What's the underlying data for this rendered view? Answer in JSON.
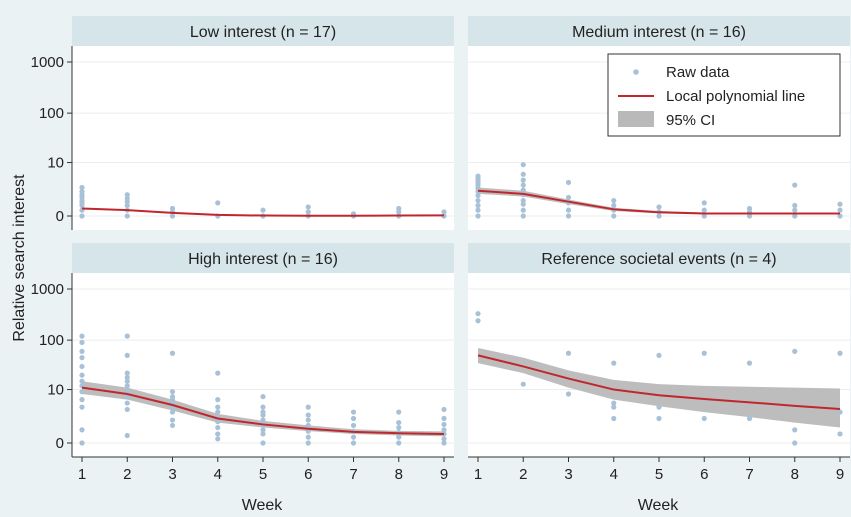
{
  "colors": {
    "outer_bg": "#eaf2f3",
    "strip_bg": "#d6e5ea",
    "plot_bg": "#ffffff",
    "grid": "#ededed",
    "point": "#a8c1d6",
    "line": "#c0272d",
    "ci": "#b9b9b9"
  },
  "ylabel": "Relative search interest",
  "xlabel": "Week",
  "legend": {
    "position": "top-right of Medium interest panel",
    "items": [
      "Raw data",
      "Local polynomial line",
      "95% CI"
    ]
  },
  "chart_data": [
    {
      "type": "scatter",
      "panel": "Low interest (n = 17)",
      "x_ticks": [
        1,
        2,
        3,
        4,
        5,
        6,
        7,
        8,
        9
      ],
      "y_ticks": [
        "0",
        "10",
        "100",
        "1000"
      ],
      "y_scale": "log(1+y)",
      "points": [
        [
          1,
          0
        ],
        [
          1,
          0.3
        ],
        [
          1,
          0.6
        ],
        [
          1,
          0.8
        ],
        [
          1,
          1
        ],
        [
          1,
          1.3
        ],
        [
          1,
          1.6
        ],
        [
          1,
          2
        ],
        [
          1,
          2.6
        ],
        [
          2,
          0
        ],
        [
          2,
          0.3
        ],
        [
          2,
          0.6
        ],
        [
          2,
          0.9
        ],
        [
          2,
          1.2
        ],
        [
          2,
          1.6
        ],
        [
          3,
          0
        ],
        [
          3,
          0.2
        ],
        [
          3,
          0.4
        ],
        [
          4,
          0
        ],
        [
          4,
          0.8
        ],
        [
          5,
          0
        ],
        [
          5,
          0.3
        ],
        [
          6,
          0
        ],
        [
          6,
          0.2
        ],
        [
          6,
          0.5
        ],
        [
          7,
          0
        ],
        [
          7,
          0.1
        ],
        [
          8,
          0
        ],
        [
          8,
          0.2
        ],
        [
          8,
          0.4
        ],
        [
          9,
          0
        ],
        [
          9,
          0.2
        ]
      ],
      "series": [
        {
          "name": "Local polynomial line",
          "values": [
            0.4,
            0.3,
            0.15,
            0.05,
            0.02,
            0.01,
            0.01,
            0.02,
            0.03
          ]
        }
      ]
    },
    {
      "type": "scatter",
      "panel": "Medium interest (n = 16)",
      "x_ticks": [
        1,
        2,
        3,
        4,
        5,
        6,
        7,
        8,
        9
      ],
      "y_ticks": [
        "0",
        "10",
        "100",
        "1000"
      ],
      "y_scale": "log(1+y)",
      "points": [
        [
          1,
          0
        ],
        [
          1,
          0.3
        ],
        [
          1,
          0.6
        ],
        [
          1,
          1
        ],
        [
          1,
          1.5
        ],
        [
          1,
          2
        ],
        [
          1,
          2.5
        ],
        [
          1,
          3
        ],
        [
          1,
          3.5
        ],
        [
          1,
          4
        ],
        [
          1,
          4.5
        ],
        [
          1,
          5
        ],
        [
          2,
          0
        ],
        [
          2,
          0.3
        ],
        [
          2,
          0.7
        ],
        [
          2,
          1
        ],
        [
          2,
          1.6
        ],
        [
          2,
          2.2
        ],
        [
          2,
          3
        ],
        [
          2,
          4
        ],
        [
          2,
          5.5
        ],
        [
          2,
          9
        ],
        [
          3,
          0
        ],
        [
          3,
          0.3
        ],
        [
          3,
          0.8
        ],
        [
          3,
          1.3
        ],
        [
          3,
          3.5
        ],
        [
          4,
          0
        ],
        [
          4,
          0.3
        ],
        [
          4,
          0.6
        ],
        [
          4,
          1
        ],
        [
          5,
          0
        ],
        [
          5,
          0.2
        ],
        [
          5,
          0.5
        ],
        [
          6,
          0
        ],
        [
          6,
          0.3
        ],
        [
          6,
          0.8
        ],
        [
          7,
          0
        ],
        [
          7,
          0.2
        ],
        [
          7,
          0.4
        ],
        [
          8,
          0
        ],
        [
          8,
          0.3
        ],
        [
          8,
          0.6
        ],
        [
          8,
          3
        ],
        [
          9,
          0
        ],
        [
          9,
          0.3
        ],
        [
          9,
          0.7
        ]
      ],
      "series": [
        {
          "name": "Local polynomial line",
          "values": [
            2.1,
            1.7,
            0.9,
            0.35,
            0.18,
            0.12,
            0.12,
            0.12,
            0.12
          ]
        }
      ],
      "ci": {
        "lower": [
          1.7,
          1.4,
          0.7,
          0.25,
          0.12,
          0.08,
          0.08,
          0.08,
          0.08
        ],
        "upper": [
          2.6,
          2.1,
          1.1,
          0.45,
          0.25,
          0.17,
          0.17,
          0.17,
          0.17
        ]
      }
    },
    {
      "type": "scatter",
      "panel": "High interest (n = 16)",
      "x_ticks": [
        1,
        2,
        3,
        4,
        5,
        6,
        7,
        8,
        9
      ],
      "y_ticks": [
        "0",
        "10",
        "100",
        "1000"
      ],
      "y_scale": "log(1+y)",
      "points": [
        [
          1,
          0
        ],
        [
          1,
          0.8
        ],
        [
          1,
          4
        ],
        [
          1,
          6
        ],
        [
          1,
          9
        ],
        [
          1,
          12
        ],
        [
          1,
          15
        ],
        [
          1,
          20
        ],
        [
          1,
          30
        ],
        [
          1,
          45
        ],
        [
          1,
          60
        ],
        [
          1,
          90
        ],
        [
          1,
          120
        ],
        [
          2,
          0.4
        ],
        [
          2,
          3.5
        ],
        [
          2,
          5
        ],
        [
          2,
          7
        ],
        [
          2,
          9
        ],
        [
          2,
          12
        ],
        [
          2,
          15
        ],
        [
          2,
          18
        ],
        [
          2,
          22
        ],
        [
          2,
          50
        ],
        [
          2,
          120
        ],
        [
          3,
          1.2
        ],
        [
          3,
          1.8
        ],
        [
          3,
          3
        ],
        [
          3,
          4
        ],
        [
          3,
          5
        ],
        [
          3,
          6
        ],
        [
          3,
          7
        ],
        [
          3,
          9
        ],
        [
          3,
          55
        ],
        [
          4,
          0.2
        ],
        [
          4,
          0.5
        ],
        [
          4,
          1
        ],
        [
          4,
          1.6
        ],
        [
          4,
          2
        ],
        [
          4,
          3
        ],
        [
          4,
          4
        ],
        [
          4,
          6
        ],
        [
          4,
          22
        ],
        [
          5,
          0
        ],
        [
          5,
          0.5
        ],
        [
          5,
          0.8
        ],
        [
          5,
          1.3
        ],
        [
          5,
          1.8
        ],
        [
          5,
          2.5
        ],
        [
          5,
          3
        ],
        [
          5,
          4
        ],
        [
          5,
          7
        ],
        [
          6,
          0
        ],
        [
          6,
          0.3
        ],
        [
          6,
          0.7
        ],
        [
          6,
          1.2
        ],
        [
          6,
          1.8
        ],
        [
          6,
          2.5
        ],
        [
          6,
          4
        ],
        [
          7,
          0
        ],
        [
          7,
          0.3
        ],
        [
          7,
          0.7
        ],
        [
          7,
          1.2
        ],
        [
          7,
          2
        ],
        [
          7,
          3
        ],
        [
          8,
          0
        ],
        [
          8,
          0.3
        ],
        [
          8,
          0.6
        ],
        [
          8,
          1
        ],
        [
          8,
          1.5
        ],
        [
          8,
          3
        ],
        [
          9,
          0
        ],
        [
          9,
          0.2
        ],
        [
          9,
          0.5
        ],
        [
          9,
          0.8
        ],
        [
          9,
          1.3
        ],
        [
          9,
          2
        ],
        [
          9,
          3.5
        ]
      ],
      "series": [
        {
          "name": "Local polynomial line",
          "values": [
            11,
            8,
            4.5,
            2,
            1.3,
            0.9,
            0.65,
            0.55,
            0.5
          ]
        }
      ],
      "ci": {
        "lower": [
          8,
          6,
          3.3,
          1.5,
          1.0,
          0.7,
          0.5,
          0.4,
          0.35
        ],
        "upper": [
          15,
          11,
          6,
          2.7,
          1.7,
          1.2,
          0.85,
          0.72,
          0.68
        ]
      }
    },
    {
      "type": "scatter",
      "panel": "Reference societal events (n = 4)",
      "x_ticks": [
        1,
        2,
        3,
        4,
        5,
        6,
        7,
        8,
        9
      ],
      "y_ticks": [
        "0",
        "10",
        "100",
        "1000"
      ],
      "y_scale": "log(1+y)",
      "points": [
        [
          1,
          240
        ],
        [
          1,
          330
        ],
        [
          2,
          13
        ],
        [
          3,
          8
        ],
        [
          3,
          55
        ],
        [
          4,
          2
        ],
        [
          4,
          4
        ],
        [
          4,
          5
        ],
        [
          4,
          35
        ],
        [
          5,
          2
        ],
        [
          5,
          4
        ],
        [
          5,
          50
        ],
        [
          6,
          2
        ],
        [
          6,
          55
        ],
        [
          7,
          2
        ],
        [
          7,
          35
        ],
        [
          8,
          0
        ],
        [
          8,
          0.8
        ],
        [
          8,
          60
        ],
        [
          9,
          0.5
        ],
        [
          9,
          3
        ],
        [
          9,
          55
        ]
      ],
      "series": [
        {
          "name": "Local polynomial line",
          "values": [
            50,
            30,
            17,
            10,
            7.5,
            6.2,
            5.2,
            4.3,
            3.6
          ]
        }
      ],
      "ci": {
        "lower": [
          35,
          22,
          11,
          6,
          4.2,
          3.0,
          2.2,
          1.5,
          1.0
        ],
        "upper": [
          70,
          45,
          25,
          16,
          13,
          12,
          11.5,
          11,
          10.5
        ]
      }
    }
  ]
}
